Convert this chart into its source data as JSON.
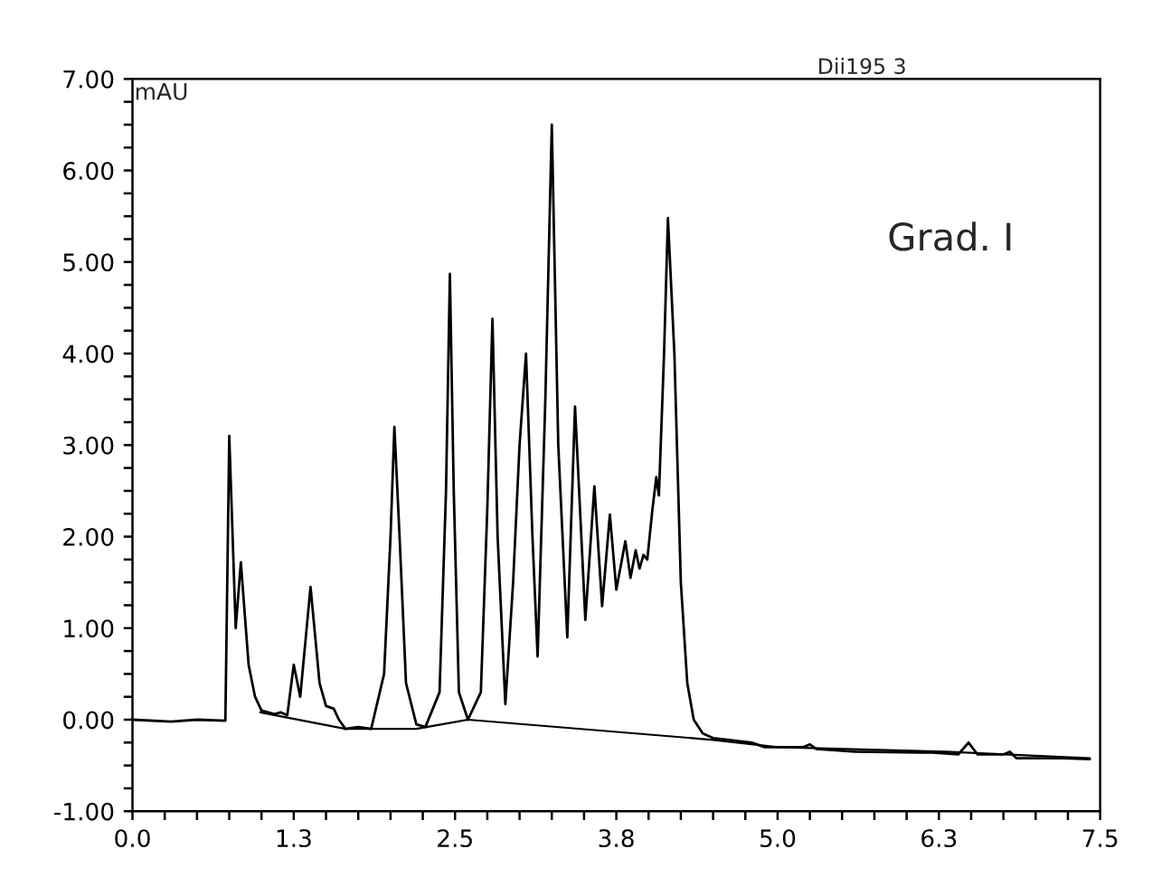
{
  "chart_data": {
    "type": "line",
    "title": "Dii195 3",
    "ylabel": "mAU",
    "annotations": [
      "Grad. I"
    ],
    "series": [
      {
        "color": "#000000",
        "x": [
          0,
          0.3,
          0.5,
          0.72,
          0.75,
          0.8,
          0.84,
          0.9,
          0.95,
          1.0,
          1.1,
          1.15,
          1.2,
          1.25,
          1.3,
          1.38,
          1.45,
          1.5,
          1.56,
          1.6,
          1.65,
          1.75,
          1.85,
          1.95,
          2.0,
          2.03,
          2.07,
          2.12,
          2.2,
          2.27,
          2.38,
          2.43,
          2.46,
          2.49,
          2.53,
          2.6,
          2.7,
          2.75,
          2.79,
          2.83,
          2.89,
          2.95,
          3.0,
          3.05,
          3.1,
          3.14,
          3.2,
          3.25,
          3.3,
          3.37,
          3.43,
          3.51,
          3.58,
          3.64,
          3.7,
          3.75,
          3.82,
          3.86,
          3.9,
          3.93,
          3.96,
          3.99,
          4.03,
          4.06,
          4.08,
          4.12,
          4.15,
          4.2,
          4.25,
          4.3,
          4.35,
          4.42,
          4.5,
          4.8,
          4.9,
          5.2,
          5.25,
          5.3,
          5.6,
          6.2,
          6.4,
          6.48,
          6.55,
          6.75,
          6.8,
          6.85,
          7.2,
          7.42
        ],
        "values": [
          0,
          -0.02,
          0,
          -0.01,
          3.1,
          1.0,
          1.72,
          0.6,
          0.25,
          0.1,
          0.06,
          0.08,
          0.05,
          0.6,
          0.25,
          1.45,
          0.4,
          0.15,
          0.12,
          0.0,
          -0.1,
          -0.08,
          -0.1,
          0.5,
          2.0,
          3.2,
          2.0,
          0.4,
          -0.05,
          -0.08,
          0.3,
          2.5,
          4.87,
          2.5,
          0.3,
          0.0,
          0.3,
          2.3,
          4.38,
          2.0,
          0.17,
          1.5,
          3.0,
          4.0,
          2.0,
          0.69,
          3.5,
          6.5,
          3.0,
          0.9,
          3.42,
          1.09,
          2.55,
          1.24,
          2.24,
          1.42,
          1.95,
          1.55,
          1.85,
          1.65,
          1.8,
          1.75,
          2.3,
          2.65,
          2.45,
          4.0,
          5.48,
          4.0,
          1.5,
          0.4,
          0.0,
          -0.15,
          -0.2,
          -0.25,
          -0.3,
          -0.3,
          -0.27,
          -0.32,
          -0.35,
          -0.36,
          -0.38,
          -0.25,
          -0.38,
          -0.38,
          -0.35,
          -0.42,
          -0.42,
          -0.43
        ]
      },
      {
        "color": "#000000",
        "x": [
          0.99,
          1.65,
          2.2,
          2.6,
          4.5,
          5.0,
          6.3,
          7.42
        ],
        "values": [
          0.08,
          -0.1,
          -0.1,
          0.0,
          -0.22,
          -0.3,
          -0.35,
          -0.42
        ]
      }
    ],
    "xlim": [
      0,
      7.5
    ],
    "xticks": [
      {
        "value": 0,
        "label": "0.0"
      },
      {
        "value": 0.25,
        "label": null
      },
      {
        "value": 0.5,
        "label": null
      },
      {
        "value": 0.75,
        "label": null
      },
      {
        "value": 1.0,
        "label": null
      },
      {
        "value": 1.25,
        "label": "1.3"
      },
      {
        "value": 1.5,
        "label": null
      },
      {
        "value": 1.75,
        "label": null
      },
      {
        "value": 2.0,
        "label": null
      },
      {
        "value": 2.25,
        "label": null
      },
      {
        "value": 2.5,
        "label": "2.5"
      },
      {
        "value": 2.75,
        "label": null
      },
      {
        "value": 3.0,
        "label": null
      },
      {
        "value": 3.25,
        "label": null
      },
      {
        "value": 3.5,
        "label": null
      },
      {
        "value": 3.75,
        "label": "3.8"
      },
      {
        "value": 4.0,
        "label": null
      },
      {
        "value": 4.25,
        "label": null
      },
      {
        "value": 4.5,
        "label": null
      },
      {
        "value": 4.75,
        "label": null
      },
      {
        "value": 5.0,
        "label": "5.0"
      },
      {
        "value": 5.25,
        "label": null
      },
      {
        "value": 5.5,
        "label": null
      },
      {
        "value": 5.75,
        "label": null
      },
      {
        "value": 6.0,
        "label": null
      },
      {
        "value": 6.25,
        "label": "6.3"
      },
      {
        "value": 6.5,
        "label": null
      },
      {
        "value": 6.75,
        "label": null
      },
      {
        "value": 7.0,
        "label": null
      },
      {
        "value": 7.25,
        "label": null
      },
      {
        "value": 7.5,
        "label": "7.5"
      }
    ],
    "ylim": [
      -1,
      7
    ],
    "yticks": [
      {
        "value": -1,
        "label": "-1.00"
      },
      {
        "value": -0.75,
        "label": null
      },
      {
        "value": -0.5,
        "label": null
      },
      {
        "value": -0.25,
        "label": null
      },
      {
        "value": 0,
        "label": "0.00"
      },
      {
        "value": 0.25,
        "label": null
      },
      {
        "value": 0.5,
        "label": null
      },
      {
        "value": 0.75,
        "label": null
      },
      {
        "value": 1,
        "label": "1.00"
      },
      {
        "value": 1.25,
        "label": null
      },
      {
        "value": 1.5,
        "label": null
      },
      {
        "value": 1.75,
        "label": null
      },
      {
        "value": 2,
        "label": "2.00"
      },
      {
        "value": 2.25,
        "label": null
      },
      {
        "value": 2.5,
        "label": null
      },
      {
        "value": 2.75,
        "label": null
      },
      {
        "value": 3,
        "label": "3.00"
      },
      {
        "value": 3.25,
        "label": null
      },
      {
        "value": 3.5,
        "label": null
      },
      {
        "value": 3.75,
        "label": null
      },
      {
        "value": 4,
        "label": "4.00"
      },
      {
        "value": 4.25,
        "label": null
      },
      {
        "value": 4.5,
        "label": null
      },
      {
        "value": 4.75,
        "label": null
      },
      {
        "value": 5,
        "label": "5.00"
      },
      {
        "value": 5.25,
        "label": null
      },
      {
        "value": 5.5,
        "label": null
      },
      {
        "value": 5.75,
        "label": null
      },
      {
        "value": 6,
        "label": "6.00"
      },
      {
        "value": 6.25,
        "label": null
      },
      {
        "value": 6.5,
        "label": null
      },
      {
        "value": 6.75,
        "label": null
      },
      {
        "value": 7,
        "label": "7.00"
      }
    ],
    "grid": false,
    "legend": false,
    "marker": "none",
    "line_style": "solid"
  }
}
